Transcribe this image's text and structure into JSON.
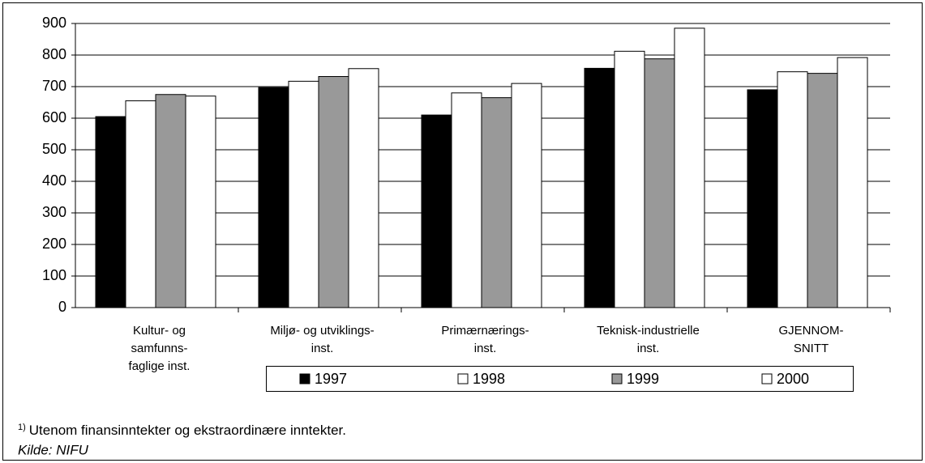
{
  "chart_data": {
    "type": "bar",
    "categories": [
      [
        "Kultur- og",
        "samfunns-",
        "faglige inst."
      ],
      [
        "Miljø- og utviklings-",
        "inst."
      ],
      [
        "Primærnærings-",
        "inst."
      ],
      [
        "Teknisk-industrielle",
        "inst."
      ],
      [
        "GJENNOM-",
        "SNITT"
      ]
    ],
    "series": [
      {
        "name": "1997",
        "color": "#000000",
        "values": [
          605,
          697,
          610,
          758,
          690
        ]
      },
      {
        "name": "1998",
        "color": "#ffffff",
        "values": [
          655,
          717,
          680,
          812,
          747
        ]
      },
      {
        "name": "1999",
        "color": "#999999",
        "values": [
          675,
          732,
          665,
          788,
          742
        ]
      },
      {
        "name": "2000",
        "color": "#ffffff",
        "values": [
          670,
          757,
          710,
          885,
          792
        ]
      }
    ],
    "ylim": [
      0,
      900
    ],
    "yticks": [
      0,
      100,
      200,
      300,
      400,
      500,
      600,
      700,
      800,
      900
    ],
    "grid": true,
    "footnote_marker": "1)",
    "footnote": "Utenom finansinntekter og ekstraordinære inntekter.",
    "source": "Kilde: NIFU"
  }
}
